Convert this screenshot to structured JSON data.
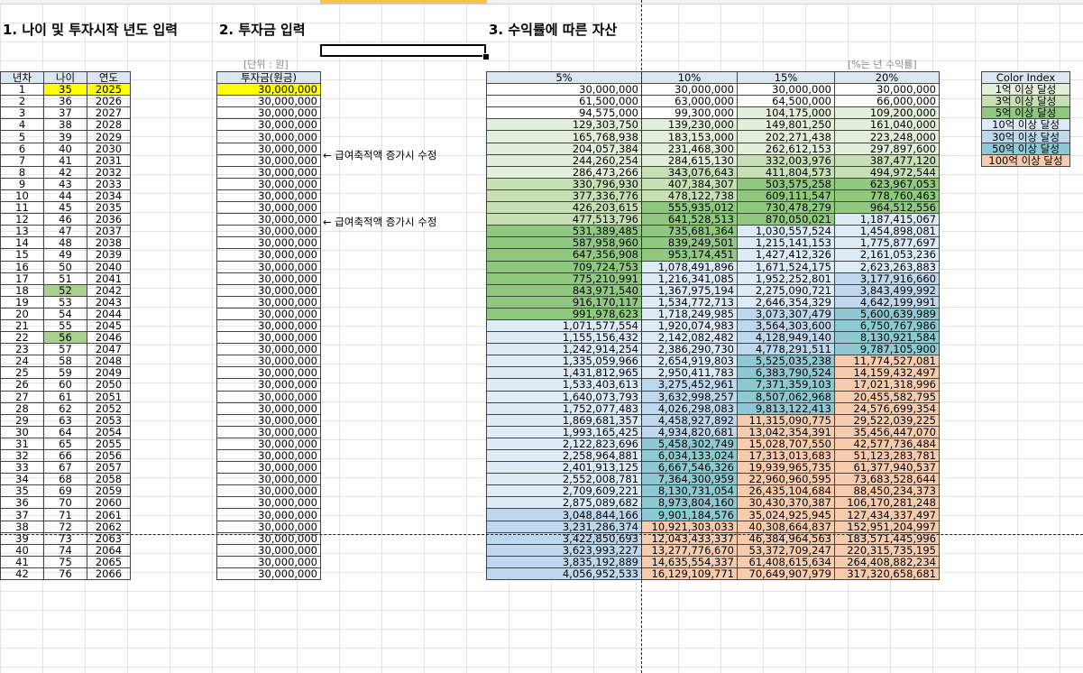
{
  "titles": {
    "s1": "1. 나이 및 투자시작 년도 입력",
    "s2": "2. 투자금 입력",
    "s3": "3. 수익률에 따른 자산"
  },
  "notes": {
    "unit": "[단위 : 원]",
    "rate": "[%는 년 수익률]",
    "arrow1": "← 급여축적액 증가시 수정",
    "arrow2": "← 급여축적액 증가시 수정"
  },
  "headers": {
    "year_no": "년차",
    "age": "나이",
    "year": "연도",
    "invest": "투자금(원금)",
    "r5": "5%",
    "r10": "10%",
    "r15": "15%",
    "r20": "20%",
    "color_index": "Color Index"
  },
  "colors": {
    "c_1": "#e2efda",
    "c_3": "#c6e0b4",
    "c_5": "#8fc97f",
    "c_10": "#ddebf7",
    "c_30": "#bdd7ee",
    "c_50": "#8ec9d3",
    "c_100": "#f8cbad",
    "highlight_yellow": "#ffff00",
    "highlight_green": "#a9d08e"
  },
  "color_index": [
    {
      "label": "1억 이상 달성",
      "cls": "c-1"
    },
    {
      "label": "3억 이상 달성",
      "cls": "c-3"
    },
    {
      "label": "5억 이상 달성",
      "cls": "c-5"
    },
    {
      "label": "10억 이상 달성",
      "cls": "c-10"
    },
    {
      "label": "30억 이상 달성",
      "cls": "c-30"
    },
    {
      "label": "50억 이상 달성",
      "cls": "c-50"
    },
    {
      "label": "100억 이상 달성",
      "cls": "c-100"
    }
  ],
  "rows": [
    {
      "n": "1",
      "age": "35",
      "year": "2025",
      "inv": "30,000,000",
      "v": [
        "30,000,000",
        "30,000,000",
        "30,000,000",
        "30,000,000"
      ]
    },
    {
      "n": "2",
      "age": "36",
      "year": "2026",
      "inv": "30,000,000",
      "v": [
        "61,500,000",
        "63,000,000",
        "64,500,000",
        "66,000,000"
      ]
    },
    {
      "n": "3",
      "age": "37",
      "year": "2027",
      "inv": "30,000,000",
      "v": [
        "94,575,000",
        "99,300,000",
        "104,175,000",
        "109,200,000"
      ]
    },
    {
      "n": "4",
      "age": "38",
      "year": "2028",
      "inv": "30,000,000",
      "v": [
        "129,303,750",
        "139,230,000",
        "149,801,250",
        "161,040,000"
      ]
    },
    {
      "n": "5",
      "age": "39",
      "year": "2029",
      "inv": "30,000,000",
      "v": [
        "165,768,938",
        "183,153,000",
        "202,271,438",
        "223,248,000"
      ]
    },
    {
      "n": "6",
      "age": "40",
      "year": "2030",
      "inv": "30,000,000",
      "v": [
        "204,057,384",
        "231,468,300",
        "262,612,153",
        "297,897,600"
      ]
    },
    {
      "n": "7",
      "age": "41",
      "year": "2031",
      "inv": "30,000,000",
      "v": [
        "244,260,254",
        "284,615,130",
        "332,003,976",
        "387,477,120"
      ]
    },
    {
      "n": "8",
      "age": "42",
      "year": "2032",
      "inv": "30,000,000",
      "v": [
        "286,473,266",
        "343,076,643",
        "411,804,573",
        "494,972,544"
      ]
    },
    {
      "n": "9",
      "age": "43",
      "year": "2033",
      "inv": "30,000,000",
      "v": [
        "330,796,930",
        "407,384,307",
        "503,575,258",
        "623,967,053"
      ]
    },
    {
      "n": "10",
      "age": "44",
      "year": "2034",
      "inv": "30,000,000",
      "v": [
        "377,336,776",
        "478,122,738",
        "609,111,547",
        "778,760,463"
      ]
    },
    {
      "n": "11",
      "age": "45",
      "year": "2035",
      "inv": "30,000,000",
      "v": [
        "426,203,615",
        "555,935,012",
        "730,478,279",
        "964,512,556"
      ]
    },
    {
      "n": "12",
      "age": "46",
      "year": "2036",
      "inv": "30,000,000",
      "v": [
        "477,513,796",
        "641,528,513",
        "870,050,021",
        "1,187,415,067"
      ]
    },
    {
      "n": "13",
      "age": "47",
      "year": "2037",
      "inv": "30,000,000",
      "v": [
        "531,389,485",
        "735,681,364",
        "1,030,557,524",
        "1,454,898,081"
      ]
    },
    {
      "n": "14",
      "age": "48",
      "year": "2038",
      "inv": "30,000,000",
      "v": [
        "587,958,960",
        "839,249,501",
        "1,215,141,153",
        "1,775,877,697"
      ]
    },
    {
      "n": "15",
      "age": "49",
      "year": "2039",
      "inv": "30,000,000",
      "v": [
        "647,356,908",
        "953,174,451",
        "1,427,412,326",
        "2,161,053,236"
      ]
    },
    {
      "n": "16",
      "age": "50",
      "year": "2040",
      "inv": "30,000,000",
      "v": [
        "709,724,753",
        "1,078,491,896",
        "1,671,524,175",
        "2,623,263,883"
      ]
    },
    {
      "n": "17",
      "age": "51",
      "year": "2041",
      "inv": "30,000,000",
      "v": [
        "775,210,991",
        "1,216,341,085",
        "1,952,252,801",
        "3,177,916,660"
      ]
    },
    {
      "n": "18",
      "age": "52",
      "year": "2042",
      "inv": "30,000,000",
      "v": [
        "843,971,540",
        "1,367,975,194",
        "2,275,090,721",
        "3,843,499,992"
      ]
    },
    {
      "n": "19",
      "age": "53",
      "year": "2043",
      "inv": "30,000,000",
      "v": [
        "916,170,117",
        "1,534,772,713",
        "2,646,354,329",
        "4,642,199,991"
      ]
    },
    {
      "n": "20",
      "age": "54",
      "year": "2044",
      "inv": "30,000,000",
      "v": [
        "991,978,623",
        "1,718,249,985",
        "3,073,307,479",
        "5,600,639,989"
      ]
    },
    {
      "n": "21",
      "age": "55",
      "year": "2045",
      "inv": "30,000,000",
      "v": [
        "1,071,577,554",
        "1,920,074,983",
        "3,564,303,600",
        "6,750,767,986"
      ]
    },
    {
      "n": "22",
      "age": "56",
      "year": "2046",
      "inv": "30,000,000",
      "v": [
        "1,155,156,432",
        "2,142,082,482",
        "4,128,949,140",
        "8,130,921,584"
      ]
    },
    {
      "n": "23",
      "age": "57",
      "year": "2047",
      "inv": "30,000,000",
      "v": [
        "1,242,914,254",
        "2,386,290,730",
        "4,778,291,511",
        "9,787,105,900"
      ]
    },
    {
      "n": "24",
      "age": "58",
      "year": "2048",
      "inv": "30,000,000",
      "v": [
        "1,335,059,966",
        "2,654,919,803",
        "5,525,035,238",
        "11,774,527,081"
      ]
    },
    {
      "n": "25",
      "age": "59",
      "year": "2049",
      "inv": "30,000,000",
      "v": [
        "1,431,812,965",
        "2,950,411,783",
        "6,383,790,524",
        "14,159,432,497"
      ]
    },
    {
      "n": "26",
      "age": "60",
      "year": "2050",
      "inv": "30,000,000",
      "v": [
        "1,533,403,613",
        "3,275,452,961",
        "7,371,359,103",
        "17,021,318,996"
      ]
    },
    {
      "n": "27",
      "age": "61",
      "year": "2051",
      "inv": "30,000,000",
      "v": [
        "1,640,073,793",
        "3,632,998,257",
        "8,507,062,968",
        "20,455,582,795"
      ]
    },
    {
      "n": "28",
      "age": "62",
      "year": "2052",
      "inv": "30,000,000",
      "v": [
        "1,752,077,483",
        "4,026,298,083",
        "9,813,122,413",
        "24,576,699,354"
      ]
    },
    {
      "n": "29",
      "age": "63",
      "year": "2053",
      "inv": "30,000,000",
      "v": [
        "1,869,681,357",
        "4,458,927,892",
        "11,315,090,775",
        "29,522,039,225"
      ]
    },
    {
      "n": "30",
      "age": "64",
      "year": "2054",
      "inv": "30,000,000",
      "v": [
        "1,993,165,425",
        "4,934,820,681",
        "13,042,354,391",
        "35,456,447,070"
      ]
    },
    {
      "n": "31",
      "age": "65",
      "year": "2055",
      "inv": "30,000,000",
      "v": [
        "2,122,823,696",
        "5,458,302,749",
        "15,028,707,550",
        "42,577,736,484"
      ]
    },
    {
      "n": "32",
      "age": "66",
      "year": "2056",
      "inv": "30,000,000",
      "v": [
        "2,258,964,881",
        "6,034,133,024",
        "17,313,013,683",
        "51,123,283,781"
      ]
    },
    {
      "n": "33",
      "age": "67",
      "year": "2057",
      "inv": "30,000,000",
      "v": [
        "2,401,913,125",
        "6,667,546,326",
        "19,939,965,735",
        "61,377,940,537"
      ]
    },
    {
      "n": "34",
      "age": "68",
      "year": "2058",
      "inv": "30,000,000",
      "v": [
        "2,552,008,781",
        "7,364,300,959",
        "22,960,960,595",
        "73,683,528,644"
      ]
    },
    {
      "n": "35",
      "age": "69",
      "year": "2059",
      "inv": "30,000,000",
      "v": [
        "2,709,609,221",
        "8,130,731,054",
        "26,435,104,684",
        "88,450,234,373"
      ]
    },
    {
      "n": "36",
      "age": "70",
      "year": "2060",
      "inv": "30,000,000",
      "v": [
        "2,875,089,682",
        "8,973,804,160",
        "30,430,370,387",
        "106,170,281,248"
      ]
    },
    {
      "n": "37",
      "age": "71",
      "year": "2061",
      "inv": "30,000,000",
      "v": [
        "3,048,844,166",
        "9,901,184,576",
        "35,024,925,945",
        "127,434,337,497"
      ]
    },
    {
      "n": "38",
      "age": "72",
      "year": "2062",
      "inv": "30,000,000",
      "v": [
        "3,231,286,374",
        "10,921,303,033",
        "40,308,664,837",
        "152,951,204,997"
      ]
    },
    {
      "n": "39",
      "age": "73",
      "year": "2063",
      "inv": "30,000,000",
      "v": [
        "3,422,850,693",
        "12,043,433,337",
        "46,384,964,563",
        "183,571,445,996"
      ]
    },
    {
      "n": "40",
      "age": "74",
      "year": "2064",
      "inv": "30,000,000",
      "v": [
        "3,623,993,227",
        "13,277,776,670",
        "53,372,709,247",
        "220,315,735,195"
      ]
    },
    {
      "n": "41",
      "age": "75",
      "year": "2065",
      "inv": "30,000,000",
      "v": [
        "3,835,192,889",
        "14,635,554,337",
        "61,408,615,634",
        "264,408,882,234"
      ]
    },
    {
      "n": "42",
      "age": "76",
      "year": "2066",
      "inv": "30,000,000",
      "v": [
        "4,056,952,533",
        "16,129,109,771",
        "70,649,907,979",
        "317,320,658,681"
      ]
    }
  ],
  "highlights": {
    "age_yellow_row": 1,
    "age_green_rows": [
      18,
      22
    ]
  }
}
